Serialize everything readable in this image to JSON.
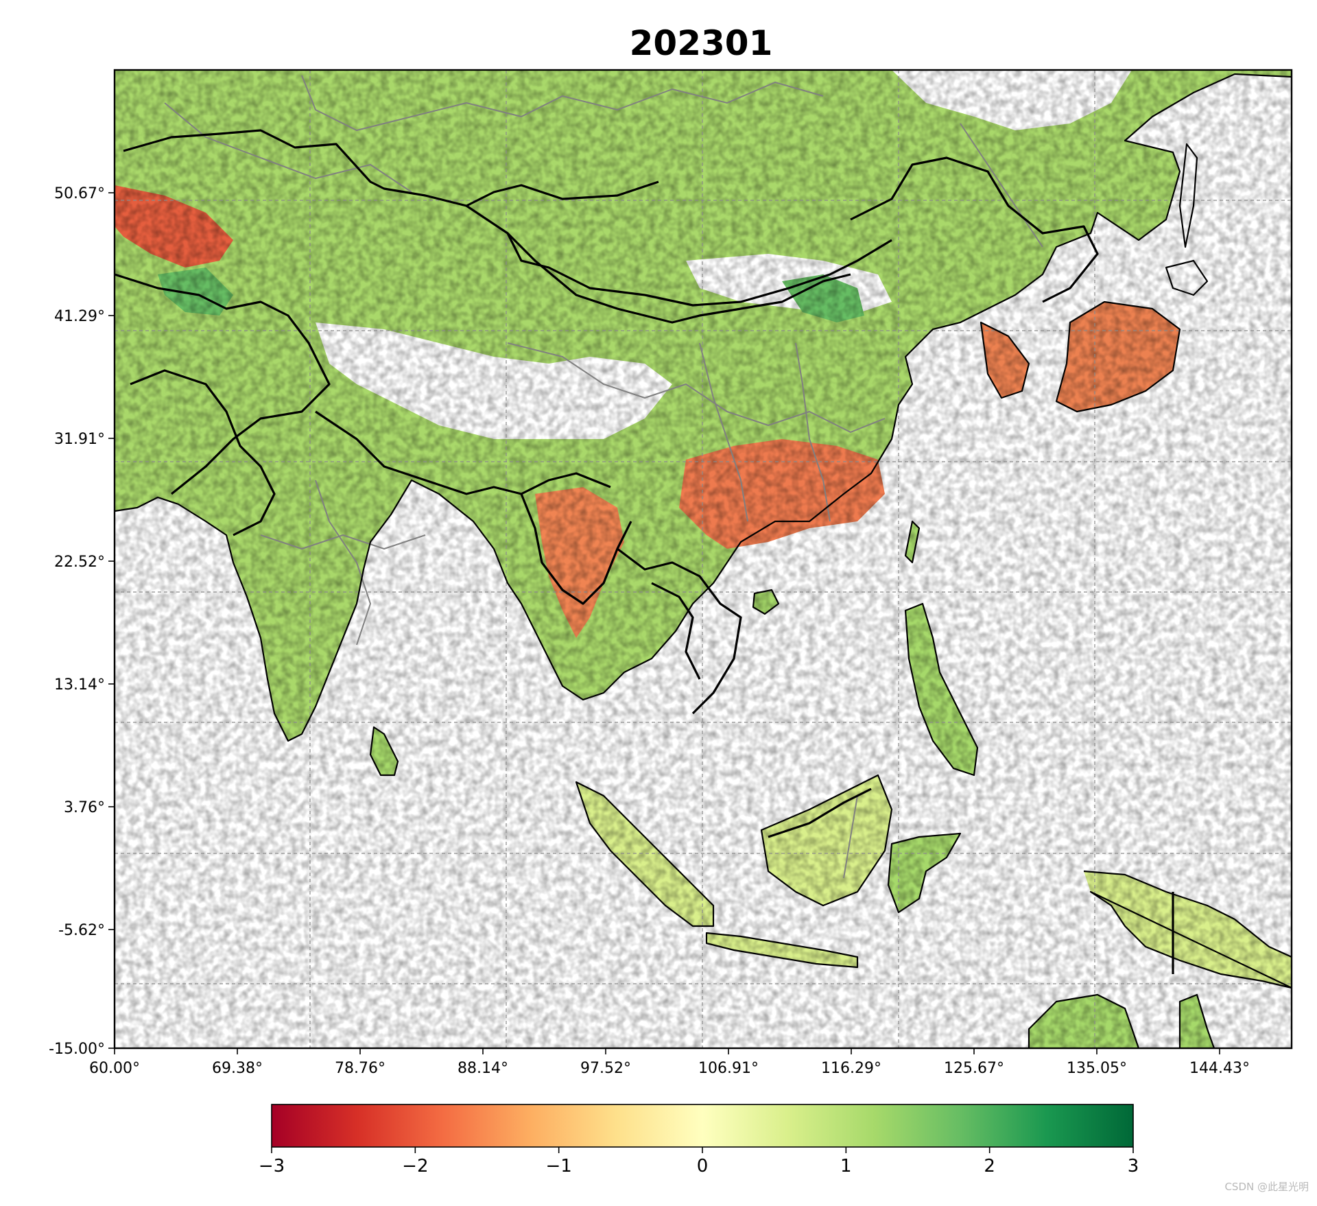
{
  "title": "202301",
  "map": {
    "lon_range": [
      60.0,
      150.0
    ],
    "lat_range": [
      -15.0,
      60.0
    ],
    "x_ticks": [
      "60.00°",
      "69.38°",
      "78.76°",
      "88.14°",
      "97.52°",
      "106.91°",
      "116.29°",
      "125.67°",
      "135.05°",
      "144.43°"
    ],
    "y_ticks": [
      "50.67°",
      "41.29°",
      "31.91°",
      "22.52°",
      "13.14°",
      "3.76°",
      "-5.62°",
      "-15.00°"
    ],
    "gridlines": "dashed, gray",
    "layers": [
      "country-borders-black",
      "province-borders-gray",
      "coastlines",
      "gridded-anomaly-field"
    ]
  },
  "colorbar": {
    "cmap": "RdYlGn",
    "range": [
      -3,
      3
    ],
    "ticks": [
      "−3",
      "−2",
      "−1",
      "0",
      "1",
      "2",
      "3"
    ],
    "colors": [
      "#a50026",
      "#d73027",
      "#f46d43",
      "#fdae61",
      "#fee08b",
      "#ffffbf",
      "#d9ef8b",
      "#a6d96a",
      "#66bd63",
      "#1a9850",
      "#006837"
    ]
  },
  "watermark": "CSDN @此星光明"
}
